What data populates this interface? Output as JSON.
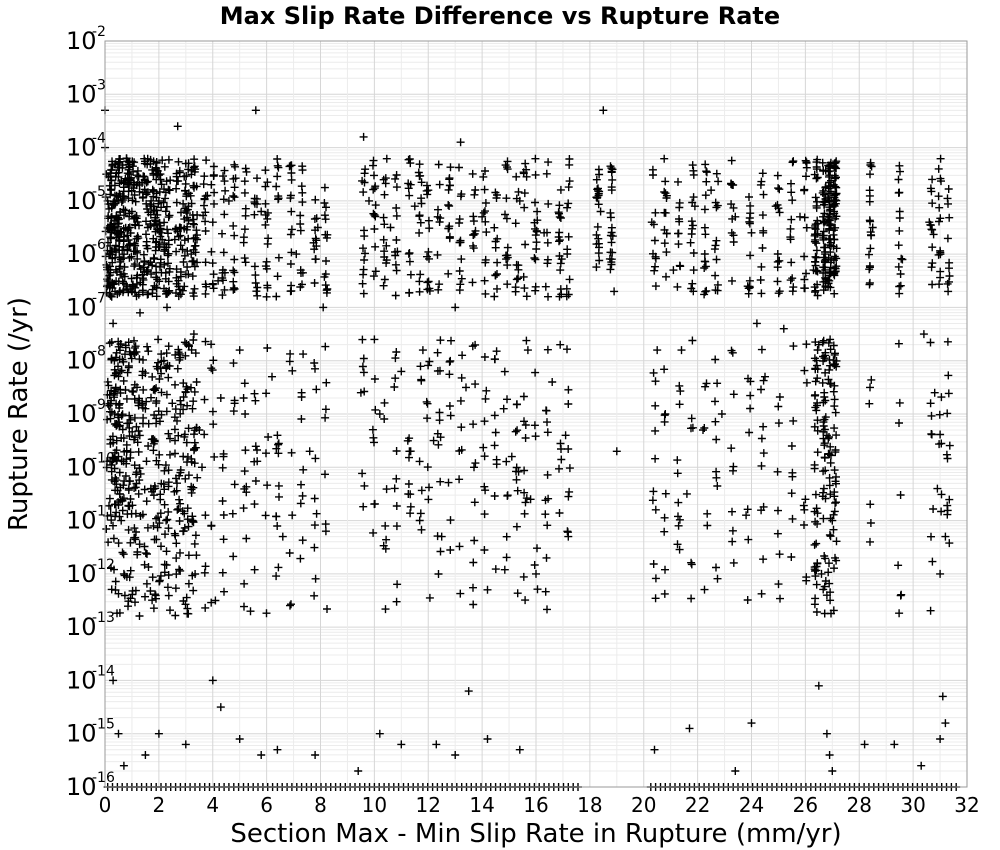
{
  "chart_data": {
    "type": "scatter",
    "title": "Max Slip Rate Difference vs Rupture Rate",
    "xlabel": "Section Max - Min Slip Rate in Rupture (mm/yr)",
    "ylabel": "Rupture Rate (/yr)",
    "xlim": [
      0,
      32
    ],
    "ylim_log10": [
      -16,
      -2
    ],
    "yscale": "log",
    "grid": true,
    "marker": "plus",
    "marker_color": "#000000",
    "x_ticks": [
      "0",
      "2",
      "4",
      "6",
      "8",
      "10",
      "12",
      "14",
      "16",
      "18",
      "20",
      "22",
      "24",
      "26",
      "28",
      "30",
      "32"
    ],
    "y_ticks": [
      {
        "base": "10",
        "exp": "-2"
      },
      {
        "base": "10",
        "exp": "-3"
      },
      {
        "base": "10",
        "exp": "-4"
      },
      {
        "base": "10",
        "exp": "-5"
      },
      {
        "base": "10",
        "exp": "-6"
      },
      {
        "base": "10",
        "exp": "-7"
      },
      {
        "base": "10",
        "exp": "-8"
      },
      {
        "base": "10",
        "exp": "-9"
      },
      {
        "base": "10",
        "exp": "-10"
      },
      {
        "base": "10",
        "exp": "-11"
      },
      {
        "base": "10",
        "exp": "-12"
      },
      {
        "base": "10",
        "exp": "-13"
      },
      {
        "base": "10",
        "exp": "-14"
      },
      {
        "base": "10",
        "exp": "-15"
      },
      {
        "base": "10",
        "exp": "-16"
      }
    ],
    "x_columns": [
      0.15,
      0.3,
      0.45,
      0.6,
      0.8,
      1.0,
      1.2,
      1.5,
      1.8,
      2.0,
      2.3,
      2.7,
      3.0,
      3.3,
      3.7,
      4.0,
      4.4,
      4.8,
      5.2,
      5.6,
      6.0,
      6.4,
      6.9,
      7.3,
      7.8,
      8.2,
      9.6,
      10.0,
      10.4,
      10.8,
      11.3,
      11.7,
      12.0,
      12.4,
      12.8,
      13.2,
      13.7,
      14.1,
      14.5,
      14.9,
      15.3,
      15.6,
      16.0,
      16.4,
      16.9,
      17.2,
      18.3,
      18.8,
      20.4,
      20.8,
      21.3,
      21.8,
      22.3,
      22.7,
      23.3,
      23.9,
      24.4,
      25.0,
      25.5,
      26.0,
      26.4,
      26.7,
      26.9,
      27.1,
      28.4,
      29.5,
      30.7,
      31.0,
      31.3
    ],
    "points": [
      [
        0.0,
        -3.3
      ],
      [
        0.0,
        -4.0
      ],
      [
        0.05,
        -4.5
      ],
      [
        0.1,
        -5.0
      ],
      [
        0.1,
        -5.5
      ],
      [
        0.15,
        -6.0
      ],
      [
        0.2,
        -6.3
      ],
      [
        0.25,
        -6.8
      ],
      [
        0.3,
        -7.3
      ],
      [
        0.35,
        -8.0
      ],
      [
        0.4,
        -8.5
      ],
      [
        0.45,
        -9.2
      ],
      [
        0.5,
        -9.8
      ],
      [
        0.55,
        -10.5
      ],
      [
        0.6,
        -11.0
      ],
      [
        0.65,
        -11.6
      ],
      [
        0.7,
        -12.0
      ],
      [
        0.8,
        -4.2
      ],
      [
        0.9,
        -4.6
      ],
      [
        1.0,
        -5.2
      ],
      [
        1.1,
        -5.8
      ],
      [
        1.2,
        -6.4
      ],
      [
        1.3,
        -7.1
      ],
      [
        1.4,
        -8.2
      ],
      [
        1.5,
        -8.9
      ],
      [
        1.6,
        -9.6
      ],
      [
        1.7,
        -10.4
      ],
      [
        1.8,
        -11.1
      ],
      [
        1.9,
        -4.4
      ],
      [
        2.0,
        -5.0
      ],
      [
        2.1,
        -5.6
      ],
      [
        2.2,
        -6.2
      ],
      [
        2.3,
        -7.0
      ],
      [
        2.4,
        -8.1
      ],
      [
        2.5,
        -8.8
      ],
      [
        2.6,
        -9.5
      ],
      [
        2.7,
        -3.6
      ],
      [
        2.8,
        -10.1
      ],
      [
        2.9,
        -11.2
      ],
      [
        3.0,
        -4.3
      ],
      [
        3.1,
        -5.1
      ],
      [
        3.2,
        -6.0
      ],
      [
        3.3,
        -7.5
      ],
      [
        3.4,
        -8.4
      ],
      [
        3.5,
        -9.3
      ],
      [
        3.6,
        -10.0
      ],
      [
        3.8,
        -4.9
      ],
      [
        4.0,
        -5.4
      ],
      [
        4.1,
        -12.5
      ],
      [
        4.2,
        -6.5
      ],
      [
        4.3,
        -8.7
      ],
      [
        4.4,
        -9.8
      ],
      [
        4.6,
        -5.0
      ],
      [
        4.8,
        -6.1
      ],
      [
        5.0,
        -7.8
      ],
      [
        5.2,
        -9.0
      ],
      [
        5.4,
        -12.7
      ],
      [
        5.6,
        -3.3
      ],
      [
        5.8,
        -5.2
      ],
      [
        6.0,
        -6.8
      ],
      [
        6.2,
        -8.3
      ],
      [
        6.4,
        -9.4
      ],
      [
        6.6,
        -11.3
      ],
      [
        6.9,
        -4.9
      ],
      [
        7.1,
        -6.0
      ],
      [
        7.3,
        -8.6
      ],
      [
        7.6,
        -9.7
      ],
      [
        7.9,
        -5.5
      ],
      [
        8.1,
        -7.0
      ],
      [
        8.2,
        -11.2
      ],
      [
        9.5,
        -8.6
      ],
      [
        9.6,
        -3.8
      ],
      [
        9.8,
        -5.0
      ],
      [
        10.0,
        -7.6
      ],
      [
        10.2,
        -9.0
      ],
      [
        10.4,
        -11.1
      ],
      [
        10.6,
        -5.5
      ],
      [
        10.8,
        -6.2
      ],
      [
        11.0,
        -8.2
      ],
      [
        11.3,
        -9.7
      ],
      [
        11.5,
        -5.1
      ],
      [
        11.8,
        -7.8
      ],
      [
        12.0,
        -4.8
      ],
      [
        12.2,
        -9.5
      ],
      [
        12.5,
        -11.3
      ],
      [
        12.8,
        -5.7
      ],
      [
        13.0,
        -7.0
      ],
      [
        13.2,
        -3.9
      ],
      [
        13.4,
        -8.5
      ],
      [
        13.7,
        -10.0
      ],
      [
        14.0,
        -5.3
      ],
      [
        14.2,
        -12.3
      ],
      [
        14.5,
        -6.4
      ],
      [
        14.8,
        -8.9
      ],
      [
        15.1,
        -9.8
      ],
      [
        15.4,
        -5.0
      ],
      [
        15.6,
        -4.3
      ],
      [
        15.7,
        -7.8
      ],
      [
        15.8,
        -10.6
      ],
      [
        16.0,
        -12.0
      ],
      [
        16.3,
        -5.6
      ],
      [
        16.6,
        -8.4
      ],
      [
        16.9,
        -6.3
      ],
      [
        17.1,
        -9.4
      ],
      [
        17.2,
        -11.3
      ],
      [
        18.4,
        -5.2
      ],
      [
        18.5,
        -3.3
      ],
      [
        18.9,
        -6.7
      ],
      [
        19.0,
        -9.7
      ],
      [
        20.3,
        -5.4
      ],
      [
        20.5,
        -7.8
      ],
      [
        20.8,
        -9.0
      ],
      [
        21.1,
        -6.3
      ],
      [
        21.4,
        -7.8
      ],
      [
        21.6,
        -10.5
      ],
      [
        21.9,
        -5.1
      ],
      [
        22.2,
        -9.3
      ],
      [
        22.5,
        -4.8
      ],
      [
        22.7,
        -6.1
      ],
      [
        22.9,
        -9.0
      ],
      [
        23.4,
        -5.3
      ],
      [
        23.8,
        -10.9
      ],
      [
        24.0,
        -5.6
      ],
      [
        24.2,
        -7.3
      ],
      [
        24.5,
        -8.3
      ],
      [
        24.9,
        -5.1
      ],
      [
        25.2,
        -7.4
      ],
      [
        25.5,
        -9.6
      ],
      [
        25.8,
        -5.3
      ],
      [
        26.0,
        -10.6
      ],
      [
        26.3,
        -6.3
      ],
      [
        26.5,
        -7.7
      ],
      [
        26.7,
        -8.6
      ],
      [
        26.8,
        -9.4
      ],
      [
        26.9,
        -10.2
      ],
      [
        27.0,
        -11.0
      ],
      [
        27.1,
        -11.7
      ],
      [
        26.6,
        -12.0
      ],
      [
        26.8,
        -12.4
      ],
      [
        28.4,
        -4.5
      ],
      [
        28.5,
        -5.5
      ],
      [
        28.4,
        -8.5
      ],
      [
        28.4,
        -11.4
      ],
      [
        29.5,
        -5.2
      ],
      [
        29.6,
        -6.1
      ],
      [
        30.4,
        -7.5
      ],
      [
        30.6,
        -5.4
      ],
      [
        30.8,
        -8.6
      ],
      [
        30.9,
        -10.4
      ],
      [
        31.0,
        -12.0
      ],
      [
        31.1,
        -14.3
      ],
      [
        31.2,
        -11.3
      ],
      [
        31.3,
        -6.7
      ],
      [
        0.3,
        -14.0
      ],
      [
        0.5,
        -15.0
      ],
      [
        0.7,
        -15.6
      ],
      [
        1.5,
        -15.4
      ],
      [
        2.0,
        -15.0
      ],
      [
        3.0,
        -15.2
      ],
      [
        4.0,
        -14.0
      ],
      [
        4.3,
        -14.5
      ],
      [
        5.0,
        -15.1
      ],
      [
        5.8,
        -15.4
      ],
      [
        6.4,
        -15.3
      ],
      [
        7.8,
        -15.4
      ],
      [
        9.4,
        -15.7
      ],
      [
        10.2,
        -15.0
      ],
      [
        11.0,
        -15.2
      ],
      [
        12.3,
        -15.2
      ],
      [
        13.0,
        -15.4
      ],
      [
        13.5,
        -14.2
      ],
      [
        14.2,
        -15.1
      ],
      [
        15.4,
        -15.3
      ],
      [
        20.4,
        -15.3
      ],
      [
        21.7,
        -14.9
      ],
      [
        23.4,
        -15.7
      ],
      [
        24.0,
        -14.8
      ],
      [
        26.5,
        -14.1
      ],
      [
        26.8,
        -15.0
      ],
      [
        26.9,
        -15.4
      ],
      [
        27.0,
        -15.7
      ],
      [
        28.2,
        -15.2
      ],
      [
        29.3,
        -15.2
      ],
      [
        30.3,
        -15.6
      ],
      [
        31.0,
        -15.1
      ],
      [
        31.2,
        -14.8
      ]
    ]
  }
}
